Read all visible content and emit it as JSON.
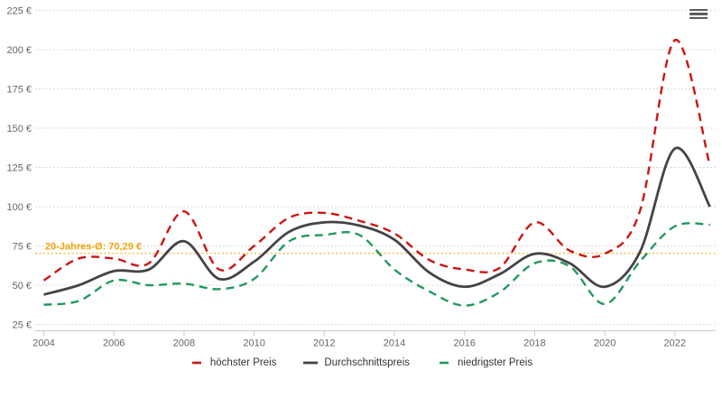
{
  "chart_data": {
    "type": "line",
    "title": "",
    "xlabel": "",
    "ylabel": "",
    "x": [
      2004,
      2005,
      2006,
      2007,
      2008,
      2009,
      2010,
      2011,
      2012,
      2013,
      2014,
      2015,
      2016,
      2017,
      2018,
      2019,
      2020,
      2021,
      2022,
      2023
    ],
    "x_ticks": [
      2004,
      2006,
      2008,
      2010,
      2012,
      2014,
      2016,
      2018,
      2020,
      2022
    ],
    "x_tick_labels": [
      "2004",
      "2006",
      "2008",
      "2010",
      "2012",
      "2014",
      "2016",
      "2018",
      "2020",
      "2022"
    ],
    "y_ticks": [
      25,
      50,
      75,
      100,
      125,
      150,
      175,
      200,
      225
    ],
    "y_tick_labels": [
      "25 €",
      "50 €",
      "75 €",
      "100 €",
      "125 €",
      "150 €",
      "175 €",
      "200 €",
      "225 €"
    ],
    "ylim": [
      21,
      232
    ],
    "grid": "horizontal-dotted",
    "legend_position": "bottom-center",
    "series": [
      {
        "id": "hoechster-preis",
        "name": "höchster Preis",
        "color": "#cc1414",
        "dash": "dashed",
        "values": [
          53,
          67,
          67,
          64,
          97,
          60,
          75,
          93,
          96,
          91,
          83,
          66,
          60,
          61,
          90,
          72,
          70,
          97,
          206,
          126
        ]
      },
      {
        "id": "durchschnittspreis",
        "name": "Durchschnittspreis",
        "color": "#434348",
        "dash": "solid",
        "values": [
          44,
          50,
          59,
          60,
          78,
          54,
          65,
          84,
          90,
          88,
          79,
          58,
          49,
          57,
          70,
          64,
          49,
          71,
          137,
          100
        ]
      },
      {
        "id": "niedrigster-preis",
        "name": "niedrigster Preis",
        "color": "#22995c",
        "dash": "dashed",
        "values": [
          37.5,
          40,
          53,
          50,
          51,
          47.5,
          54,
          78,
          82,
          82,
          60,
          46,
          37,
          45.5,
          64,
          62,
          38,
          65,
          87.5,
          88.5
        ]
      }
    ],
    "average_line": {
      "label": "20-Jahres-Ø: 70,29 €",
      "value": 70.29,
      "color": "#f0a30a"
    }
  },
  "toolbar": {
    "menu_icon": "hamburger-menu-icon"
  },
  "colors": {
    "grid": "#d9d9d9",
    "axis": "#c9c9c9",
    "axis_label": "#666666",
    "legend_text": "#333333",
    "background": "#ffffff"
  }
}
